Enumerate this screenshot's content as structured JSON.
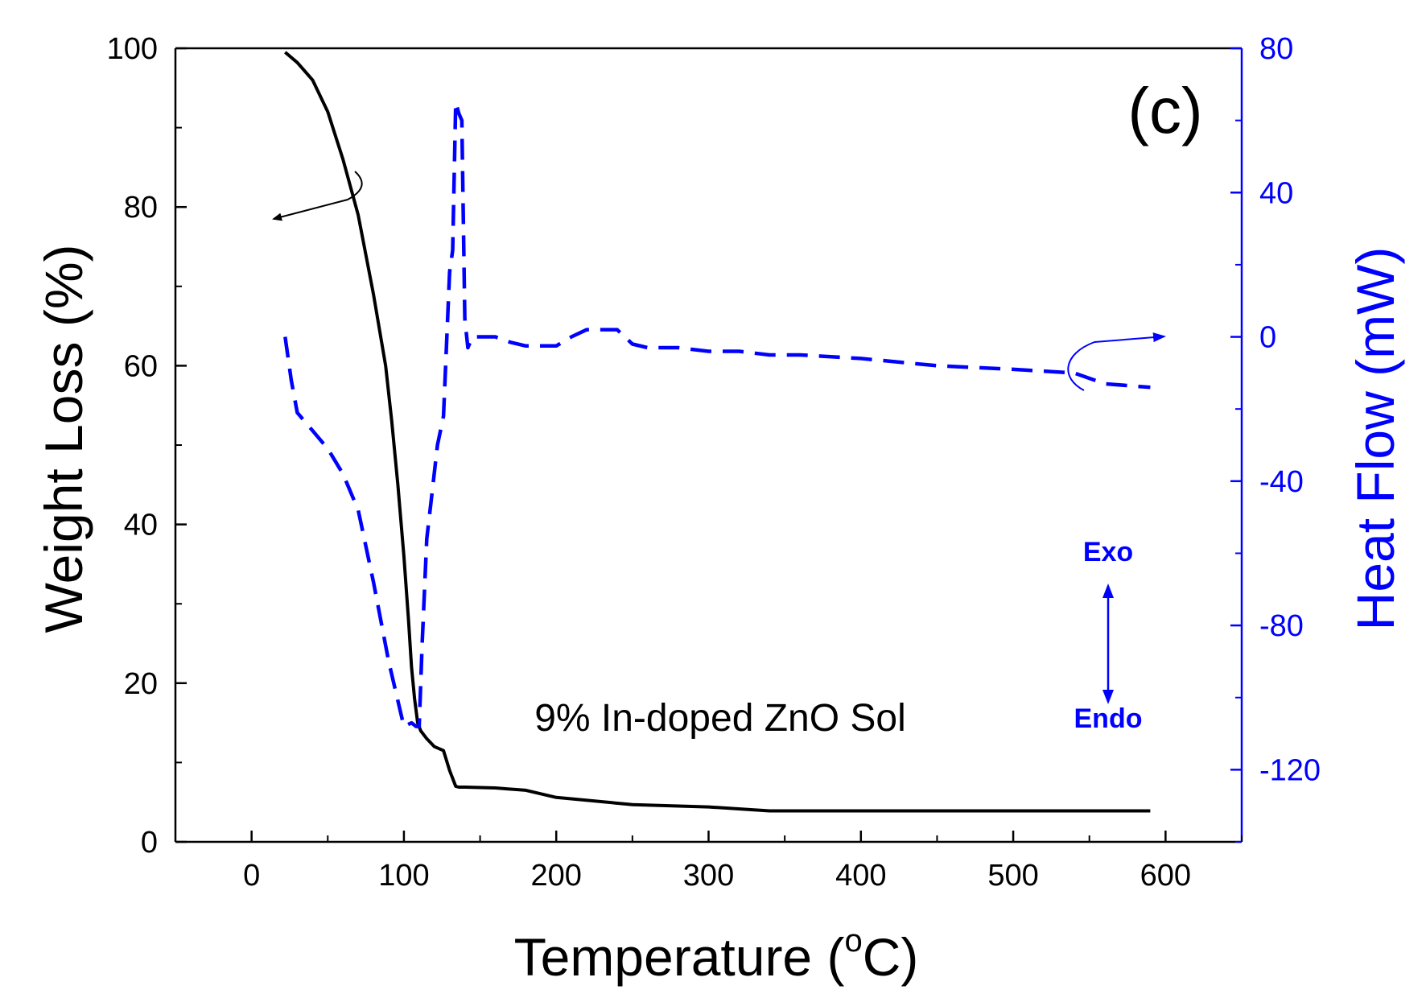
{
  "colors": {
    "weight": "#000000",
    "heat": "#0000ff",
    "axis": "#000000",
    "right_axis": "#0000ff"
  },
  "chart_data": {
    "type": "line",
    "panel_label": "(c)",
    "annotation": "9% In-doped ZnO Sol",
    "exo_label": "Exo",
    "endo_label": "Endo",
    "xlabel_main": "Temperature (",
    "xlabel_deg": "o",
    "xlabel_unit": "C)",
    "ylabel_left": "Weight Loss (%)",
    "ylabel_right": "Heat Flow (mW)",
    "xlim": [
      -50,
      650
    ],
    "ylim_left": [
      0,
      100
    ],
    "ylim_right": [
      -140,
      80
    ],
    "x_ticks": [
      0,
      100,
      200,
      300,
      400,
      500,
      600
    ],
    "y_left_ticks": [
      0,
      20,
      40,
      60,
      80,
      100
    ],
    "y_right_ticks": [
      -120,
      -80,
      -40,
      0,
      40,
      80
    ],
    "x_tick_labels": [
      "0",
      "100",
      "200",
      "300",
      "400",
      "500",
      "600"
    ],
    "y_left_tick_labels": [
      "0",
      "20",
      "40",
      "60",
      "80",
      "100"
    ],
    "y_right_tick_labels": [
      "-120",
      "-80",
      "-40",
      "0",
      "40",
      "80"
    ],
    "series": [
      {
        "name": "Weight Loss",
        "axis": "left",
        "style": "solid",
        "x": [
          22,
          30,
          40,
          50,
          60,
          70,
          80,
          88,
          92,
          96,
          100,
          103,
          105,
          107,
          109,
          111,
          115,
          120,
          126,
          130,
          134,
          136,
          140,
          160,
          180,
          200,
          250,
          300,
          340,
          400,
          500,
          590
        ],
        "y": [
          99.5,
          98.2,
          96,
          92,
          86,
          79,
          69,
          60,
          53,
          45,
          36,
          28,
          22,
          18,
          15,
          14,
          13,
          12,
          11.5,
          9,
          7,
          6.9,
          6.9,
          6.8,
          6.5,
          5.6,
          4.7,
          4.4,
          3.9,
          3.9,
          3.9,
          3.9
        ]
      },
      {
        "name": "Heat Flow",
        "axis": "right",
        "style": "dashed",
        "x": [
          22,
          26,
          30,
          40,
          50,
          60,
          70,
          80,
          90,
          100,
          105,
          108,
          110,
          112,
          115,
          118,
          122,
          126,
          130,
          132,
          134,
          136,
          138,
          140,
          142,
          145,
          150,
          160,
          170,
          180,
          190,
          200,
          210,
          220,
          230,
          240,
          250,
          260,
          280,
          300,
          320,
          340,
          360,
          400,
          450,
          500,
          540,
          560,
          590
        ],
        "y": [
          0,
          -12,
          -21,
          -26,
          -31,
          -38,
          -48,
          -68,
          -90,
          -108,
          -107,
          -108,
          -108,
          -85,
          -56,
          -45,
          -30,
          -22,
          18,
          24,
          65,
          62,
          60,
          5,
          -3,
          0,
          0,
          0,
          -1.5,
          -2.5,
          -2.5,
          -2.5,
          0,
          2,
          2,
          2,
          -2,
          -3,
          -3,
          -4,
          -4,
          -5,
          -5,
          -6,
          -8,
          -9,
          -10,
          -13,
          -14
        ]
      }
    ]
  }
}
